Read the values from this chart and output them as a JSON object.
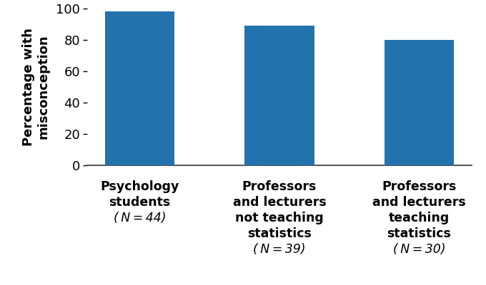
{
  "categories_line1": [
    "Psychology",
    "Professors",
    "Professors"
  ],
  "categories_line2": [
    "students",
    "and lecturers",
    "and lecturers"
  ],
  "categories_line3": [
    "",
    "not teaching",
    "teaching"
  ],
  "categories_line4": [
    "",
    "statistics",
    "statistics"
  ],
  "n_labels": [
    "(N = 44)",
    "(N = 39)",
    "(N = 30)"
  ],
  "values": [
    98,
    89,
    80
  ],
  "bar_color": "#2272ae",
  "ylabel": "Percentage with\nmisconception",
  "ylim": [
    0,
    100
  ],
  "yticks": [
    0,
    20,
    40,
    60,
    80,
    100
  ],
  "bar_width": 0.5,
  "background_color": "#ffffff",
  "ylabel_fontsize": 13,
  "tick_fontsize": 13,
  "label_fontsize": 12.5
}
